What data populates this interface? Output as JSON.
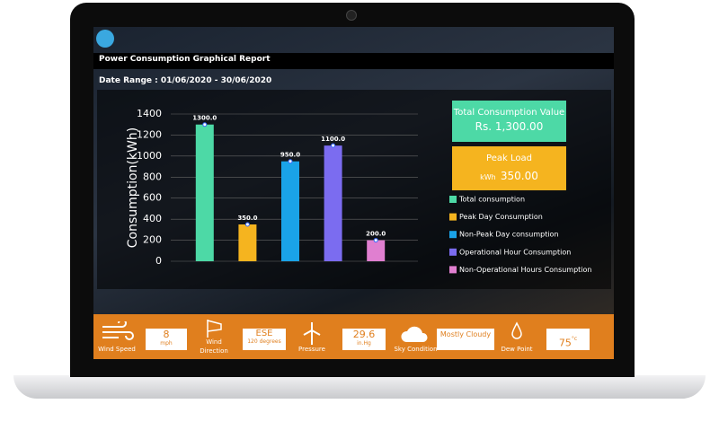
{
  "header": {
    "title": "Power Consumption Graphical Report",
    "date_range": "Date Range : 01/06/2020 - 30/06/2020"
  },
  "chart_data": {
    "type": "bar",
    "y_label": "Consumption(kWh)",
    "categories": [
      "Total consumption",
      "Peak Day Consumption",
      "Non-Peak Day consumption",
      "Operational Hour Consumption",
      "Non-Operational Hours Consumption"
    ],
    "values": [
      1300,
      350,
      950,
      1100,
      200
    ],
    "value_labels": [
      "1300.0",
      "350.0",
      "950.0",
      "1100.0",
      "200.0"
    ],
    "colors": [
      "#4dd9a6",
      "#f5b41f",
      "#1aa3e8",
      "#7b6cf0",
      "#e07fd0"
    ],
    "ylim": [
      0,
      1400
    ],
    "yticks": [
      0,
      200,
      400,
      600,
      800,
      1000,
      1200,
      1400
    ],
    "grid": true,
    "legend": true
  },
  "summary": {
    "total_label": "Total Consumption Value",
    "total_value": "Rs. 1,300.00",
    "peak_label": "Peak Load",
    "peak_unit": "kWh",
    "peak_value": "350.00"
  },
  "weather": {
    "wind_speed": {
      "label": "Wind Speed",
      "value": "8",
      "unit": "mph"
    },
    "wind_direction": {
      "label": "Wind Direction",
      "value": "ESE",
      "detail": "120 degrees"
    },
    "pressure": {
      "label": "Pressure",
      "value": "29.6",
      "unit": "in.Hg"
    },
    "sky": {
      "label": "Sky Condition",
      "value": "Mostly Cloudy"
    },
    "dew_point": {
      "label": "Dew Point",
      "value": "75",
      "unit": "°c"
    }
  }
}
